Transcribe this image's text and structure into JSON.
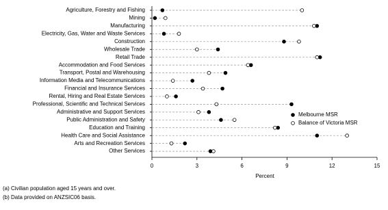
{
  "chart_data": {
    "type": "dot",
    "categories": [
      "Agriculture, Forestry and Fishing",
      "Mining",
      "Manufacturing",
      "Electricity, Gas, Water and Waste Services",
      "Construction",
      "Wholesale Trade",
      "Retail Trade",
      "Accommodation and Food Services",
      "Transport, Postal and Warehousing",
      "Information Media and Telecommunications",
      "Financial and Insurance Services",
      "Rental, Hiring and Real Estate Services",
      "Professional, Scientific and Technical Services",
      "Administrative and Support Services",
      "Public Administration and Safety",
      "Education and Training",
      "Health Care and Social Assistance",
      "Arts and Recreation Services",
      "Other Services"
    ],
    "series": [
      {
        "name": "Melbourne MSR",
        "color": "#000000",
        "values": [
          0.7,
          0.2,
          11.0,
          0.8,
          8.8,
          4.4,
          11.2,
          6.6,
          4.9,
          2.7,
          4.7,
          1.6,
          9.3,
          3.8,
          4.6,
          8.4,
          11.0,
          2.2,
          3.9
        ]
      },
      {
        "name": "Balance of Victoria MSR",
        "color": "#ffffff",
        "values": [
          10.0,
          0.9,
          10.8,
          1.8,
          9.8,
          3.0,
          11.0,
          6.4,
          3.8,
          1.4,
          3.4,
          1.0,
          4.3,
          3.1,
          5.5,
          8.2,
          13.0,
          1.3,
          4.1
        ]
      }
    ],
    "x_label": "Percent",
    "xlim": [
      0,
      15
    ],
    "xticks": [
      0,
      3,
      6,
      9,
      12,
      15
    ],
    "footnotes": [
      "(a) Civilian population aged 15 years and over.",
      "(b) Data provided on ANZSIC06 basis."
    ]
  }
}
